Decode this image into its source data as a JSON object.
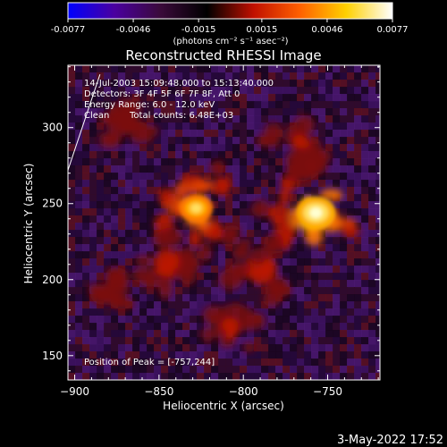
{
  "colorbar": {
    "tick_labels": [
      "-0.0077",
      "-0.0046",
      "-0.0015",
      "0.0015",
      "0.0046",
      "0.0077"
    ],
    "tick_values": [
      -0.0077,
      -0.0046,
      -0.0015,
      0.0015,
      0.0046,
      0.0077
    ],
    "range": [
      -0.0077,
      0.0077
    ],
    "unit_label": "(photons cm⁻² s⁻¹ asec⁻²)",
    "colors": [
      "#0000ff",
      "#4a00a0",
      "#3a0a3a",
      "#000000",
      "#c01000",
      "#ff6000",
      "#ffd000",
      "#ffffff"
    ]
  },
  "chart_data": {
    "type": "heatmap",
    "title": "Reconstructed RHESSI Image",
    "xlabel": "Heliocentric X (arcsec)",
    "ylabel": "Heliocentric Y (arcsec)",
    "xlim": [
      -904,
      -719
    ],
    "ylim": [
      134,
      341
    ],
    "x_ticks": [
      -900,
      -850,
      -800,
      -750
    ],
    "y_ticks": [
      150,
      200,
      250,
      300
    ],
    "x_tick_labels": [
      "−900",
      "−850",
      "−800",
      "−750"
    ],
    "y_tick_labels": [
      "150",
      "200",
      "250",
      "300"
    ],
    "annotations": [
      "14-Jul-2003 15:09:48.000 to 15:13:40.000",
      "Detectors: 3F 4F 5F 6F 7F 8F, Att 0",
      "Energy Range: 6.0 - 12.0 keV",
      "Clean",
      "Total counts: 6.48E+03"
    ],
    "peak_label": "Position of Peak = [-757,244]",
    "sources": [
      {
        "x": -828,
        "y": 247,
        "value": 0.0066
      },
      {
        "x": -757,
        "y": 244,
        "value": 0.0077
      },
      {
        "x": -790,
        "y": 205,
        "value": 0.003
      },
      {
        "x": -808,
        "y": 168,
        "value": 0.0022
      },
      {
        "x": -845,
        "y": 210,
        "value": 0.0026
      },
      {
        "x": -770,
        "y": 288,
        "value": 0.0028
      },
      {
        "x": -870,
        "y": 300,
        "value": 0.0018
      },
      {
        "x": -880,
        "y": 190,
        "value": 0.0015
      }
    ],
    "limb_line": {
      "x": [
        -904,
        -885
      ],
      "y": [
        272,
        335
      ]
    }
  },
  "footer": {
    "date": "3-May-2022 17:52"
  }
}
